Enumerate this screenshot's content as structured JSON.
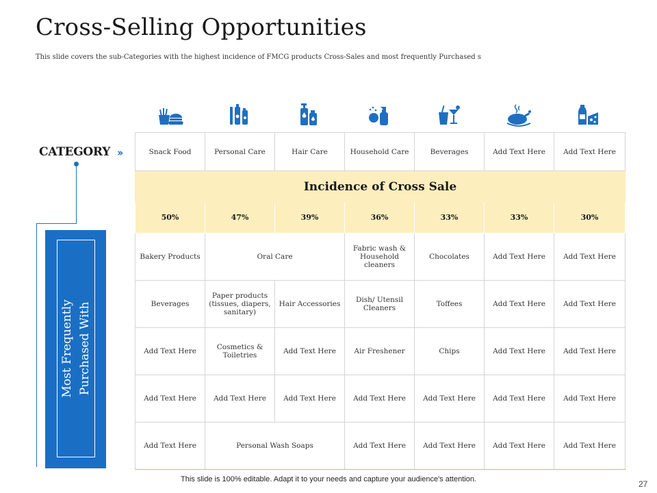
{
  "title": "Cross-Selling Opportunities",
  "subtitle": "This slide covers the sub-Categories with the highest incidence of FMCG products Cross-Sales and most frequently Purchased s",
  "category_label": "CATEGORY",
  "side_label": "Most Frequently\nPurchased With",
  "icons": [
    "fast-food-icon",
    "personal-care-bottles-icon",
    "hair-care-bottles-icon",
    "household-cleaner-icon",
    "beverages-glass-icon",
    "roast-chicken-icon",
    "milk-cheese-icon"
  ],
  "accent_color": "#1f6fc1",
  "highlight_color": "#fdeebd",
  "categories": [
    "Snack Food",
    "Personal Care",
    "Hair Care",
    "Household Care",
    "Beverages",
    "Add Text Here",
    "Add Text Here"
  ],
  "incidence_header": "Incidence of Cross Sale",
  "incidence": [
    "50%",
    "47%",
    "39%",
    "36%",
    "33%",
    "33%",
    "30%"
  ],
  "rows": {
    "r0": {
      "c0": "Bakery Products",
      "c1": "Oral Care",
      "c3": "Fabric wash & Household cleaners",
      "c4": "Chocolates",
      "c5": "Add Text Here",
      "c6": "Add Text Here"
    },
    "r1": {
      "c0": "Beverages",
      "c1": "Paper products (tissues, diapers, sanitary)",
      "c2": "Hair Accessories",
      "c3": "Dish/ Utensil Cleaners",
      "c4": "Toffees",
      "c5": "Add Text Here",
      "c6": "Add Text Here"
    },
    "r2": {
      "c0": "Add Text Here",
      "c1": "Cosmetics & Toiletries",
      "c2": "Add Text Here",
      "c3": "Air Freshener",
      "c4": "Chips",
      "c5": "Add Text Here",
      "c6": "Add Text Here"
    },
    "r3": {
      "c0": "Add Text Here",
      "c1": "Add Text Here",
      "c2": "Add Text Here",
      "c3": "Add Text Here",
      "c4": "Add Text Here",
      "c5": "Add Text Here",
      "c6": "Add Text Here"
    },
    "r4": {
      "c0": "Add Text Here",
      "c1": "Personal Wash Soaps",
      "c3": "Add Text Here",
      "c4": "Add Text Here",
      "c5": "Add Text Here",
      "c6": "Add Text Here"
    }
  },
  "footer": "This slide is 100% editable. Adapt it to your needs and capture your audience's attention.",
  "page_number": "27"
}
